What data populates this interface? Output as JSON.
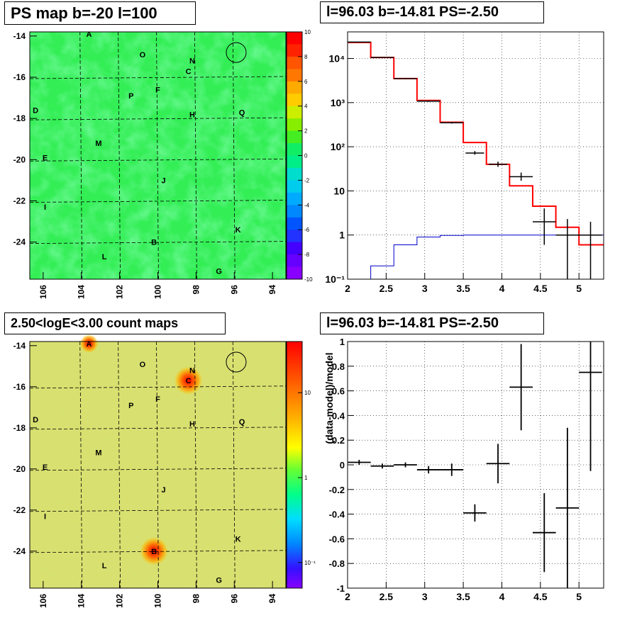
{
  "panels": {
    "ps_map": {
      "title": "PS map b=-20 l=100",
      "x_ticks": [
        "106",
        "104",
        "102",
        "100",
        "98",
        "96",
        "94"
      ],
      "y_ticks": [
        "-14",
        "-16",
        "-18",
        "-20",
        "-22",
        "-24"
      ],
      "palette_ticks": [
        "10",
        "8",
        "6",
        "4",
        "2",
        "0",
        "-2",
        "-4",
        "-6",
        "-8",
        "-10"
      ],
      "sources": [
        "A",
        "O",
        "N",
        "C",
        "F",
        "P",
        "D",
        "H",
        "Q",
        "M",
        "E",
        "J",
        "I",
        "K",
        "B",
        "L",
        "G"
      ]
    },
    "count_map": {
      "title": "2.50<logE<3.00 count maps",
      "x_ticks": [
        "106",
        "104",
        "102",
        "100",
        "98",
        "96",
        "94"
      ],
      "y_ticks": [
        "-14",
        "-16",
        "-18",
        "-20",
        "-22",
        "-24"
      ],
      "palette_ticks": [
        "10",
        "1",
        "10⁻¹"
      ],
      "sources": [
        "A",
        "O",
        "N",
        "C",
        "F",
        "P",
        "D",
        "H",
        "Q",
        "M",
        "E",
        "J",
        "I",
        "K",
        "B",
        "L",
        "G"
      ]
    },
    "spectrum": {
      "title": "l=96.03 b=-14.81 PS=-2.50"
    },
    "residual": {
      "title": "l=96.03 b=-14.81 PS=-2.50"
    }
  },
  "chart_data": [
    {
      "type": "heatmap",
      "title": "PS map b=-20 l=100",
      "xlim": [
        106.7,
        93.3
      ],
      "ylim": [
        -25.8,
        -13.8
      ],
      "zlim": [
        -10,
        10
      ],
      "colorbar": "rainbow",
      "dominant_value": 0.5,
      "grid": true,
      "marker": {
        "type": "circle",
        "x": 95.9,
        "y": -14.8
      },
      "labels": [
        {
          "text": "A",
          "x": 103.6,
          "y": -13.9
        },
        {
          "text": "O",
          "x": 100.8,
          "y": -14.9
        },
        {
          "text": "N",
          "x": 98.2,
          "y": -15.2
        },
        {
          "text": "C",
          "x": 98.4,
          "y": -15.7
        },
        {
          "text": "F",
          "x": 100.0,
          "y": -16.6
        },
        {
          "text": "P",
          "x": 101.4,
          "y": -16.9
        },
        {
          "text": "D",
          "x": 106.4,
          "y": -17.6
        },
        {
          "text": "H",
          "x": 98.2,
          "y": -17.8
        },
        {
          "text": "Q",
          "x": 95.6,
          "y": -17.7
        },
        {
          "text": "M",
          "x": 103.1,
          "y": -19.2
        },
        {
          "text": "E",
          "x": 105.9,
          "y": -19.9
        },
        {
          "text": "J",
          "x": 99.7,
          "y": -21.0
        },
        {
          "text": "I",
          "x": 105.9,
          "y": -22.3
        },
        {
          "text": "K",
          "x": 95.8,
          "y": -23.4
        },
        {
          "text": "B",
          "x": 100.2,
          "y": -24.0
        },
        {
          "text": "L",
          "x": 102.8,
          "y": -24.7
        },
        {
          "text": "G",
          "x": 96.8,
          "y": -25.4
        }
      ]
    },
    {
      "type": "line",
      "title": "l=96.03 b=-14.81 PS=-2.50",
      "xlim": [
        2,
        5.32
      ],
      "ylim": [
        0.1,
        40000
      ],
      "ylog": true,
      "x_ticks": [
        2,
        2.5,
        3,
        3.5,
        4,
        4.5,
        5
      ],
      "y_ticks": [
        {
          "v": 0.1,
          "label": "10⁻¹"
        },
        {
          "v": 1,
          "label": "1"
        },
        {
          "v": 10,
          "label": "10"
        },
        {
          "v": 100,
          "label": "10²"
        },
        {
          "v": 1000,
          "label": "10³"
        },
        {
          "v": 10000,
          "label": "10⁴"
        }
      ],
      "grid": true,
      "series": [
        {
          "color": "#ff0000",
          "type": "step",
          "edges": [
            2.0,
            2.3,
            2.6,
            2.9,
            3.2,
            3.5,
            3.8,
            4.1,
            4.4,
            4.7,
            5.0,
            5.32
          ],
          "values": [
            23000,
            10500,
            3500,
            1120,
            360,
            125,
            40,
            13,
            4.5,
            1.5,
            0.6
          ]
        },
        {
          "color": "#0000cc",
          "type": "step",
          "edges": [
            2.0,
            2.3,
            2.6,
            2.9,
            3.2,
            3.5,
            3.8,
            4.1,
            4.4,
            4.7,
            5.0,
            5.32
          ],
          "values": [
            0.1,
            0.2,
            0.6,
            0.9,
            0.98,
            1.0,
            1.0,
            1.0,
            1.0,
            1.0,
            1.0
          ]
        },
        {
          "color": "#000000",
          "type": "errorbar",
          "points": [
            {
              "x": 2.15,
              "xerr": 0.15,
              "y": 23500,
              "ylo": 23000,
              "yhi": 24000
            },
            {
              "x": 2.45,
              "xerr": 0.15,
              "y": 10500,
              "ylo": 10300,
              "yhi": 10700
            },
            {
              "x": 2.75,
              "xerr": 0.15,
              "y": 3500,
              "ylo": 3400,
              "yhi": 3600
            },
            {
              "x": 3.05,
              "xerr": 0.15,
              "y": 1080,
              "ylo": 1040,
              "yhi": 1120
            },
            {
              "x": 3.35,
              "xerr": 0.15,
              "y": 350,
              "ylo": 335,
              "yhi": 365
            },
            {
              "x": 3.65,
              "xerr": 0.12,
              "y": 72,
              "ylo": 66,
              "yhi": 80
            },
            {
              "x": 3.95,
              "xerr": 0.12,
              "y": 40,
              "ylo": 35,
              "yhi": 46
            },
            {
              "x": 4.25,
              "xerr": 0.15,
              "y": 21,
              "ylo": 17,
              "yhi": 26
            },
            {
              "x": 4.55,
              "xerr": 0.15,
              "y": 2,
              "ylo": 0.6,
              "yhi": 4
            },
            {
              "x": 4.85,
              "xerr": 0.15,
              "y": 1,
              "ylo": 0.1,
              "yhi": 2.3
            },
            {
              "x": 5.15,
              "xerr": 0.15,
              "y": 1,
              "ylo": 0.1,
              "yhi": 2.0
            }
          ]
        }
      ]
    },
    {
      "type": "heatmap",
      "title": "2.50<logE<3.00 count maps",
      "xlim": [
        106.7,
        93.3
      ],
      "ylim": [
        -25.8,
        -13.8
      ],
      "zlog": true,
      "zlim": [
        0.05,
        40
      ],
      "colorbar": "rainbow",
      "hotspots": [
        {
          "label": "C",
          "x": 98.4,
          "y": -15.7,
          "value": 30
        },
        {
          "label": "B",
          "x": 100.2,
          "y": -24.0,
          "value": 30
        },
        {
          "label": "A",
          "x": 103.6,
          "y": -13.9,
          "value": 10
        }
      ],
      "grid": true,
      "marker": {
        "type": "circle",
        "x": 95.9,
        "y": -14.8
      }
    },
    {
      "type": "scatter",
      "title": "l=96.03 b=-14.81 PS=-2.50",
      "ylabel": "(data-model)/model",
      "xlim": [
        2,
        5.32
      ],
      "ylim": [
        -1,
        1
      ],
      "x_ticks": [
        2,
        2.5,
        3,
        3.5,
        4,
        4.5,
        5
      ],
      "y_ticks": [
        -1,
        -0.8,
        -0.6,
        -0.4,
        -0.2,
        0,
        0.2,
        0.4,
        0.6,
        0.8,
        1
      ],
      "grid": true,
      "points": [
        {
          "x": 2.15,
          "xerr": 0.15,
          "y": 0.02,
          "err": 0.02
        },
        {
          "x": 2.45,
          "xerr": 0.15,
          "y": -0.01,
          "err": 0.02
        },
        {
          "x": 2.75,
          "xerr": 0.15,
          "y": 0.0,
          "err": 0.02
        },
        {
          "x": 3.05,
          "xerr": 0.15,
          "y": -0.04,
          "err": 0.03
        },
        {
          "x": 3.35,
          "xerr": 0.15,
          "y": -0.04,
          "err": 0.05
        },
        {
          "x": 3.65,
          "xerr": 0.15,
          "y": -0.39,
          "err": 0.07
        },
        {
          "x": 3.95,
          "xerr": 0.15,
          "y": 0.01,
          "err": 0.16
        },
        {
          "x": 4.25,
          "xerr": 0.15,
          "y": 0.63,
          "err": 0.35
        },
        {
          "x": 4.55,
          "xerr": 0.15,
          "y": -0.55,
          "err": 0.32
        },
        {
          "x": 4.85,
          "xerr": 0.15,
          "y": -0.35,
          "err": 0.65
        },
        {
          "x": 5.15,
          "xerr": 0.15,
          "y": 0.75,
          "err": 0.8
        }
      ]
    }
  ]
}
